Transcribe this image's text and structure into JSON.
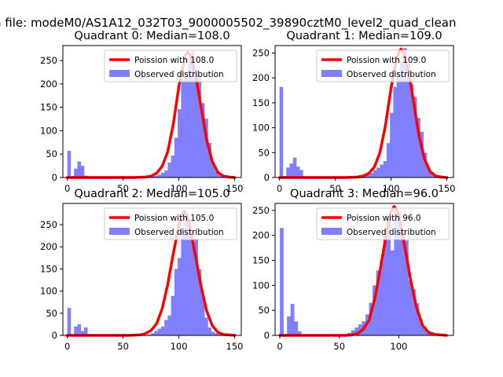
{
  "figure": {
    "suptitle": "n file: modeM0/AS1A12_032T03_9000005502_39890cztM0_level2_quad_clean"
  },
  "chart_data": [
    {
      "type": "bar",
      "title": "Quadrant 0: Median=108.0",
      "median": 108,
      "xlim": [
        -4,
        156
      ],
      "ylim": [
        0,
        282
      ],
      "xticks": [
        0,
        50,
        100,
        150
      ],
      "yticks": [
        0,
        50,
        100,
        150,
        200,
        250
      ],
      "legend": {
        "placement": "top-right",
        "entries": [
          "Poission with 108.0",
          "Observed distribution"
        ]
      },
      "series": [
        {
          "name": "Observed distribution",
          "kind": "histogram",
          "color": "#8080ff",
          "bin_width": 3,
          "x": [
            0,
            3,
            6,
            9,
            12,
            15,
            18,
            21,
            24,
            27,
            30,
            33,
            36,
            39,
            42,
            45,
            48,
            51,
            54,
            57,
            60,
            63,
            66,
            69,
            72,
            75,
            78,
            81,
            84,
            87,
            90,
            93,
            96,
            99,
            102,
            105,
            108,
            111,
            114,
            117,
            120,
            123,
            126,
            129,
            132,
            135,
            138,
            141,
            144,
            147
          ],
          "values": [
            57,
            3,
            19,
            34,
            25,
            4,
            0,
            0,
            0,
            0,
            0,
            0,
            0,
            0,
            0,
            0,
            0,
            0,
            0,
            0,
            0,
            0,
            0,
            0,
            2,
            3,
            4,
            6,
            10,
            15,
            32,
            47,
            85,
            146,
            210,
            225,
            255,
            270,
            230,
            220,
            159,
            126,
            74,
            32,
            14,
            8,
            5,
            3,
            1,
            1
          ]
        },
        {
          "name": "Poission with 108.0",
          "kind": "line",
          "color": "#ff0000",
          "x": [
            0,
            45,
            60,
            70,
            75,
            80,
            85,
            90,
            95,
            100,
            103,
            106,
            108,
            110,
            113,
            116,
            120,
            125,
            130,
            135,
            140,
            145,
            150
          ],
          "values": [
            0,
            0,
            0,
            1,
            3,
            9,
            24,
            55,
            114,
            195,
            230,
            262,
            268,
            262,
            238,
            205,
            150,
            80,
            34,
            11,
            3,
            1,
            0
          ]
        }
      ]
    },
    {
      "type": "bar",
      "title": "Quadrant 1: Median=109.0",
      "median": 109,
      "xlim": [
        -4,
        156
      ],
      "ylim": [
        0,
        265
      ],
      "xticks": [
        0,
        50,
        100,
        150
      ],
      "yticks": [
        0,
        50,
        100,
        150,
        200,
        250
      ],
      "legend": {
        "placement": "top-right",
        "entries": [
          "Poission with 109.0",
          "Observed distribution"
        ]
      },
      "series": [
        {
          "name": "Observed distribution",
          "kind": "histogram",
          "color": "#8080ff",
          "bin_width": 3,
          "x": [
            0,
            3,
            6,
            9,
            12,
            15,
            18,
            21,
            24,
            27,
            30,
            33,
            36,
            39,
            42,
            45,
            48,
            51,
            54,
            57,
            60,
            63,
            66,
            69,
            72,
            75,
            78,
            81,
            84,
            87,
            90,
            93,
            96,
            99,
            102,
            105,
            108,
            111,
            114,
            117,
            120,
            123,
            126,
            129,
            132,
            135,
            138,
            141,
            144,
            147
          ],
          "values": [
            182,
            3,
            20,
            28,
            40,
            22,
            15,
            0,
            0,
            0,
            0,
            0,
            0,
            0,
            0,
            0,
            0,
            0,
            0,
            0,
            0,
            0,
            0,
            0,
            0,
            3,
            5,
            9,
            15,
            20,
            26,
            33,
            69,
            130,
            182,
            212,
            235,
            260,
            228,
            187,
            162,
            120,
            92,
            50,
            18,
            11,
            6,
            3,
            1,
            0
          ]
        },
        {
          "name": "Poission with 109.0",
          "kind": "line",
          "color": "#ff0000",
          "x": [
            0,
            45,
            60,
            70,
            75,
            80,
            85,
            90,
            95,
            100,
            104,
            107,
            109,
            111,
            114,
            117,
            120,
            125,
            130,
            135,
            140,
            145,
            150
          ],
          "values": [
            0,
            0,
            0,
            1,
            3,
            8,
            21,
            50,
            105,
            180,
            228,
            252,
            258,
            252,
            228,
            196,
            155,
            85,
            37,
            12,
            3,
            1,
            0
          ]
        }
      ]
    },
    {
      "type": "bar",
      "title": "Quadrant 2: Median=105.0",
      "median": 105,
      "xlim": [
        -4,
        156
      ],
      "ylim": [
        0,
        298
      ],
      "xticks": [
        0,
        50,
        100,
        150
      ],
      "yticks": [
        0,
        50,
        100,
        150,
        200,
        250
      ],
      "legend": {
        "placement": "top-right",
        "entries": [
          "Poission with 105.0",
          "Observed distribution"
        ]
      },
      "series": [
        {
          "name": "Observed distribution",
          "kind": "histogram",
          "color": "#8080ff",
          "bin_width": 3,
          "x": [
            0,
            3,
            6,
            9,
            12,
            15,
            18,
            21,
            24,
            27,
            30,
            33,
            36,
            39,
            42,
            45,
            48,
            51,
            54,
            57,
            60,
            63,
            66,
            69,
            72,
            75,
            78,
            81,
            84,
            87,
            90,
            93,
            96,
            99,
            102,
            105,
            108,
            111,
            114,
            117,
            120,
            123,
            126,
            129,
            132,
            135,
            138,
            141,
            144,
            147
          ],
          "values": [
            62,
            3,
            20,
            25,
            10,
            18,
            3,
            0,
            0,
            0,
            0,
            0,
            0,
            0,
            0,
            0,
            0,
            0,
            0,
            0,
            0,
            0,
            0,
            0,
            2,
            5,
            10,
            15,
            20,
            35,
            45,
            89,
            150,
            175,
            240,
            270,
            265,
            210,
            220,
            150,
            90,
            40,
            18,
            8,
            4,
            2,
            1,
            0,
            0,
            0
          ]
        },
        {
          "name": "Poission with 105.0",
          "kind": "line",
          "color": "#ff0000",
          "x": [
            0,
            40,
            55,
            65,
            70,
            75,
            80,
            85,
            90,
            95,
            100,
            103,
            105,
            107,
            110,
            113,
            117,
            120,
            125,
            130,
            135,
            140,
            145,
            150
          ],
          "values": [
            0,
            0,
            0,
            1,
            4,
            11,
            26,
            60,
            115,
            185,
            248,
            272,
            280,
            272,
            245,
            205,
            150,
            110,
            55,
            22,
            7,
            2,
            1,
            0
          ]
        }
      ]
    },
    {
      "type": "bar",
      "title": "Quadrant 3: Median=96.0",
      "median": 96,
      "xlim": [
        -4,
        146
      ],
      "ylim": [
        0,
        264
      ],
      "xticks": [
        0,
        50,
        100
      ],
      "yticks": [
        0,
        50,
        100,
        150,
        200,
        250
      ],
      "legend": {
        "placement": "top-right",
        "entries": [
          "Poission with 96.0",
          "Observed distribution"
        ]
      },
      "series": [
        {
          "name": "Observed distribution",
          "kind": "histogram",
          "color": "#8080ff",
          "bin_width": 3,
          "x": [
            0,
            3,
            6,
            9,
            12,
            15,
            18,
            21,
            24,
            27,
            30,
            33,
            36,
            39,
            42,
            45,
            48,
            51,
            54,
            57,
            60,
            63,
            66,
            69,
            72,
            75,
            78,
            81,
            84,
            87,
            90,
            93,
            96,
            99,
            102,
            105,
            108,
            111,
            114,
            117,
            120,
            123,
            126,
            129,
            132,
            135,
            138
          ],
          "values": [
            215,
            3,
            38,
            63,
            28,
            8,
            0,
            0,
            0,
            0,
            0,
            0,
            0,
            0,
            0,
            0,
            0,
            0,
            3,
            5,
            10,
            16,
            22,
            28,
            42,
            65,
            100,
            130,
            150,
            200,
            235,
            170,
            255,
            248,
            212,
            190,
            110,
            92,
            64,
            32,
            18,
            10,
            5,
            2,
            1,
            0,
            0
          ]
        },
        {
          "name": "Poission with 96.0",
          "kind": "line",
          "color": "#ff0000",
          "x": [
            0,
            40,
            55,
            60,
            65,
            70,
            75,
            80,
            85,
            90,
            93,
            96,
            99,
            102,
            106,
            110,
            115,
            120,
            125,
            130,
            135,
            140
          ],
          "values": [
            0,
            0,
            0,
            1,
            3,
            12,
            30,
            75,
            140,
            210,
            245,
            258,
            248,
            215,
            165,
            110,
            55,
            20,
            6,
            2,
            1,
            0
          ]
        }
      ]
    }
  ]
}
